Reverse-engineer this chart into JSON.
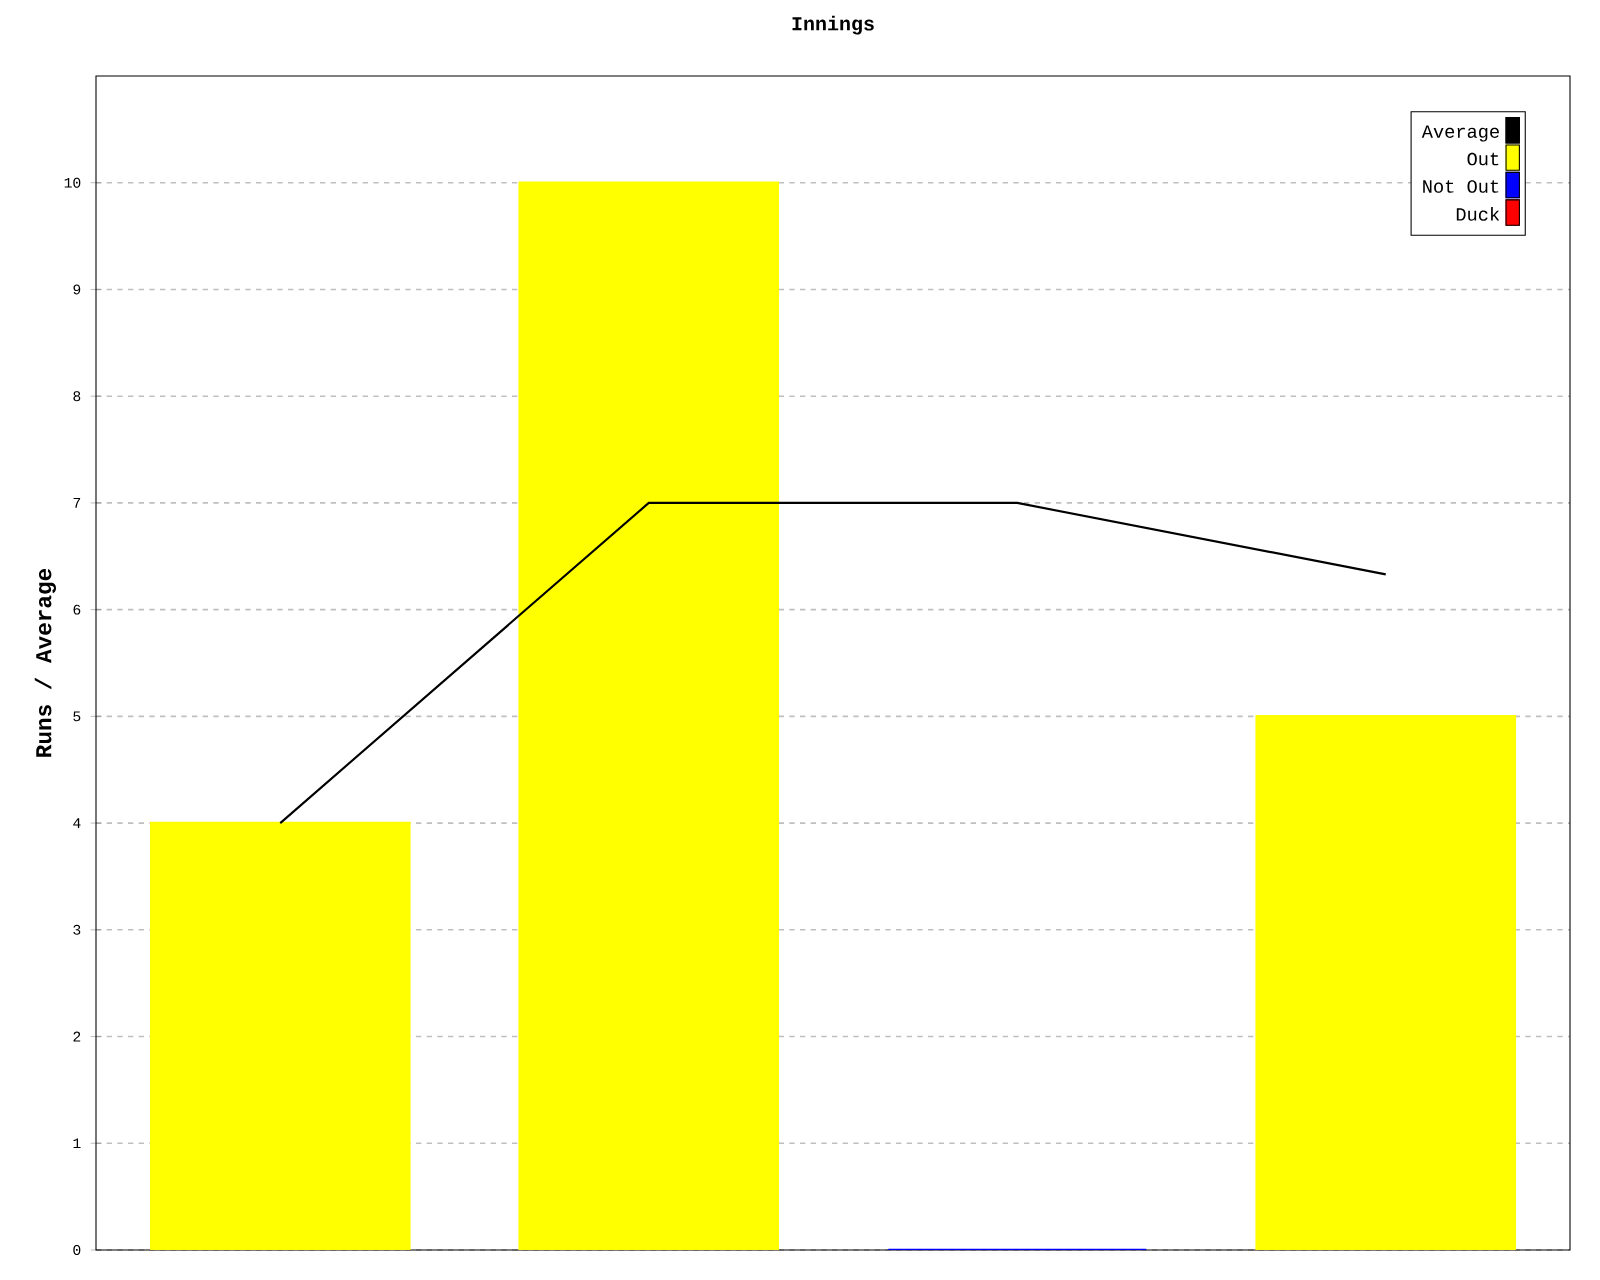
{
  "chart_data": {
    "type": "bar",
    "title": "Innings",
    "ylabel": "Runs / Average",
    "categories": [
      null,
      null,
      null,
      null
    ],
    "series": [
      {
        "name": "Average",
        "type": "line",
        "color": "#000000",
        "values": [
          4,
          7,
          7,
          6.33
        ]
      },
      {
        "name": "Out",
        "color": "#ffff00",
        "values": [
          4,
          10,
          null,
          5
        ]
      },
      {
        "name": "Not Out",
        "color": "#0000ff",
        "values": [
          null,
          null,
          0,
          null
        ]
      },
      {
        "name": "Duck",
        "color": "#ff0000",
        "values": [
          null,
          null,
          null,
          null
        ]
      }
    ],
    "ylim": [
      0,
      11
    ],
    "yticks": [
      0,
      1,
      2,
      3,
      4,
      5,
      6,
      7,
      8,
      9,
      10
    ],
    "grid": "y",
    "legend": "top right",
    "marker": "none",
    "line_style": "solid"
  }
}
